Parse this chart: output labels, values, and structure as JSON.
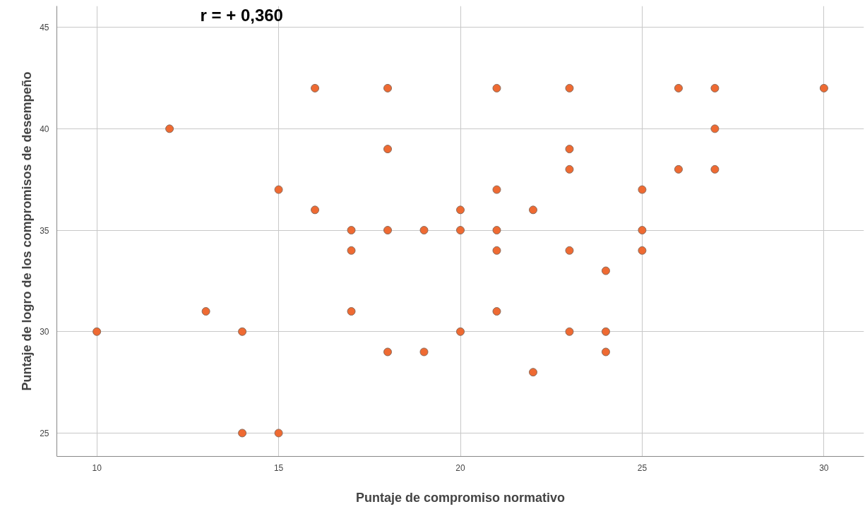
{
  "chart_data": {
    "type": "scatter",
    "xlabel": "Puntaje de compromiso normativo",
    "ylabel": "Puntaje de logro de los compromisos de desempeño",
    "annotations": [
      "r = + 0,360"
    ],
    "x": [
      10,
      12,
      13,
      14,
      14,
      15,
      15,
      16,
      16,
      17,
      17,
      17,
      18,
      18,
      18,
      18,
      19,
      19,
      20,
      20,
      20,
      21,
      21,
      21,
      21,
      21,
      22,
      22,
      23,
      23,
      23,
      23,
      23,
      24,
      24,
      24,
      25,
      25,
      25,
      26,
      26,
      27,
      27,
      27,
      30
    ],
    "values": [
      30,
      40,
      31,
      30,
      25,
      37,
      25,
      42,
      36,
      35,
      34,
      31,
      42,
      39,
      35,
      29,
      35,
      29,
      36,
      35,
      30,
      42,
      37,
      35,
      34,
      31,
      36,
      28,
      42,
      39,
      38,
      34,
      30,
      33,
      30,
      29,
      37,
      35,
      34,
      42,
      38,
      42,
      40,
      38,
      42
    ],
    "color": "#ef6a32",
    "marker": "circle",
    "grid": true,
    "xlim": [
      8.9,
      31.1
    ],
    "ylim": [
      23.85,
      46.05
    ],
    "xticks": [
      10,
      15,
      20,
      25,
      30
    ],
    "yticks": [
      25,
      30,
      35,
      40,
      45
    ]
  }
}
